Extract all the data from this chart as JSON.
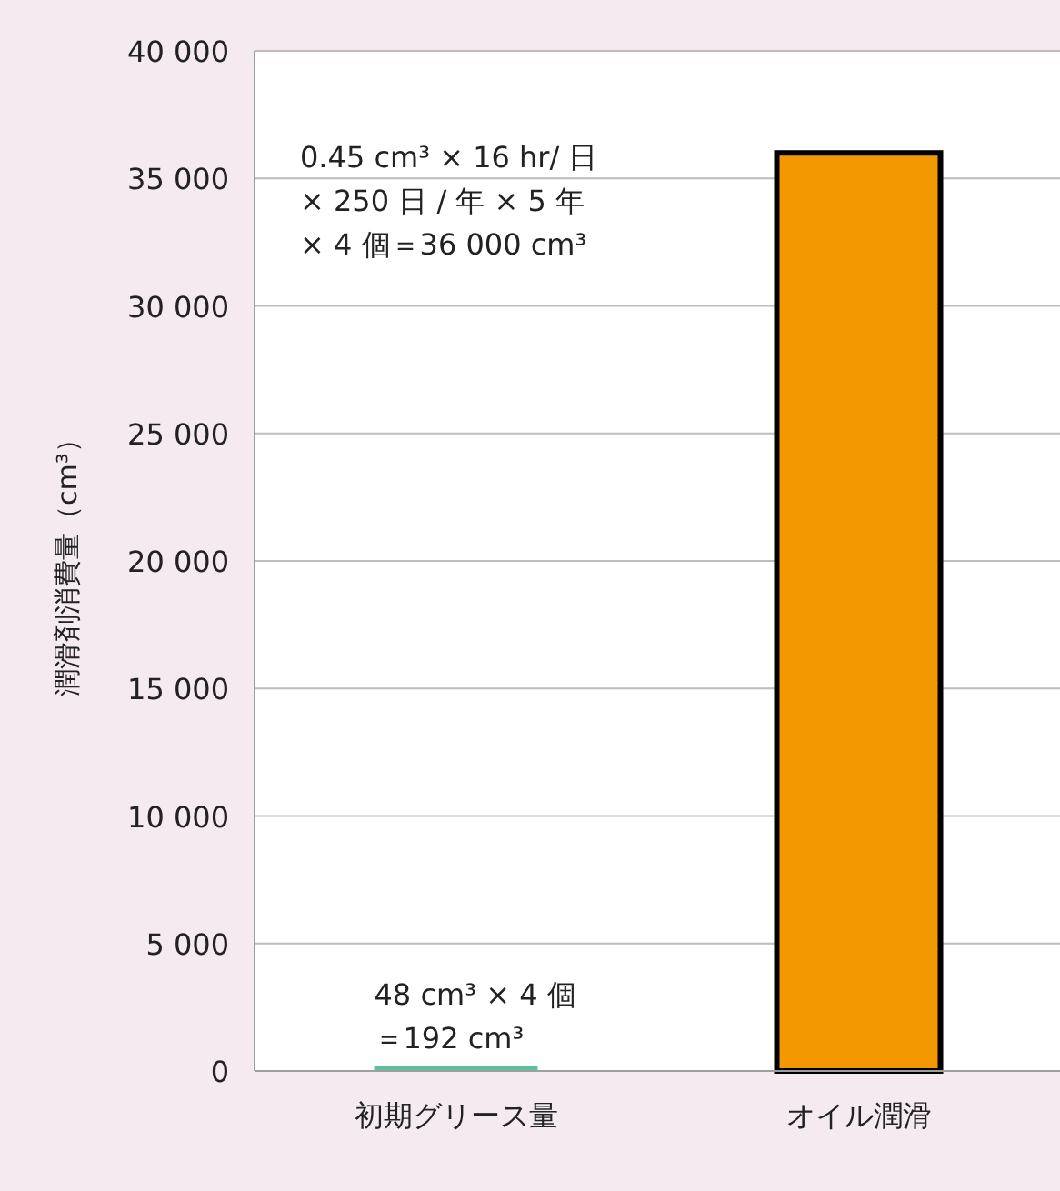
{
  "chart_data": {
    "type": "bar",
    "ylabel": "潤滑剤消費量（cm³）",
    "categories": [
      "初期グリース量",
      "オイル潤滑"
    ],
    "values": [
      192,
      36000
    ],
    "colors": [
      "#5bbf9a",
      "#f39800"
    ],
    "ylim": [
      0,
      40000
    ],
    "yticks": [
      0,
      {
        "value": 5000,
        "label": "5 000"
      },
      {
        "value": 10000,
        "label": "10 000"
      },
      {
        "value": 15000,
        "label": "15 000"
      },
      {
        "value": 20000,
        "label": "20 000"
      },
      {
        "value": 25000,
        "label": "25 000"
      },
      {
        "value": 30000,
        "label": "30 000"
      },
      {
        "value": 35000,
        "label": "35 000"
      },
      {
        "value": 40000,
        "label": "40 000"
      }
    ],
    "grid": "y",
    "annotations": [
      "0.45 cm³ × 16 hr/ 日",
      "× 250 日 / 年 × 5 年",
      "× 4 個＝36 000 cm³",
      {
        "text": "48 cm³ × 4 個",
        "x": "初期グリース量",
        "y": 192
      },
      {
        "text": "＝192 cm³",
        "x": "初期グリース量",
        "y": 192
      }
    ]
  }
}
